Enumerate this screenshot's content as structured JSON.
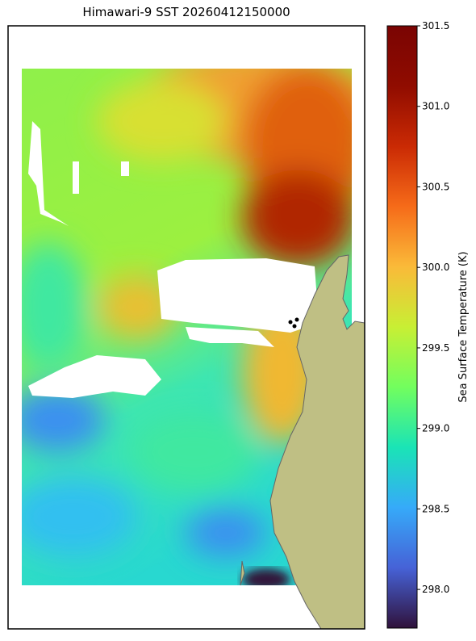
{
  "title": "Himawari-9 SST 20260412150000",
  "colorbar": {
    "label": "Sea Surface Temperature (K)",
    "colormap": "turbo",
    "lim": [
      297.76,
      301.5
    ],
    "ticks": [
      {
        "value": 298,
        "label": "298.0"
      },
      298.5,
      {
        "value": 299,
        "label": "299.0"
      },
      299.5,
      {
        "value": 300,
        "label": "300.0"
      },
      300.5,
      {
        "value": 301,
        "label": "301.0"
      },
      301.5
    ]
  }
}
